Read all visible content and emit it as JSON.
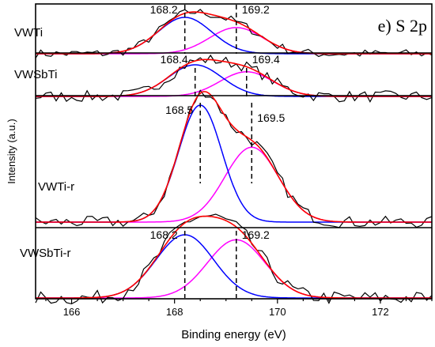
{
  "chart_data": {
    "type": "line",
    "panel_label": "e) S 2p",
    "xlabel": "Binding energy (eV)",
    "ylabel": "Intensity (a.u.)",
    "xlim": [
      165.3,
      173.0
    ],
    "xticks": [
      166,
      168,
      170,
      172
    ],
    "xtick_labels": [
      "166",
      "168",
      "170",
      "172"
    ],
    "grid": false,
    "colors": {
      "experimental": "#000000",
      "fit_envelope": "#ff0000",
      "component_1": "#0000ff",
      "component_2": "#ff00ff",
      "peak_marker": "#000000"
    },
    "spectra": [
      {
        "name": "VWTi",
        "peaks": [
          168.2,
          169.2
        ],
        "peak_labels": [
          "168.2",
          "169.2"
        ],
        "amplitudes": [
          1.0,
          0.72
        ],
        "widths": [
          0.52,
          0.52
        ],
        "noise": 0.12
      },
      {
        "name": "VWSbTi",
        "peaks": [
          168.4,
          169.4
        ],
        "peak_labels": [
          "168.4",
          "169.4"
        ],
        "amplitudes": [
          1.0,
          0.78
        ],
        "widths": [
          0.52,
          0.52
        ],
        "noise": 0.18
      },
      {
        "name": "VWTi-r",
        "peaks": [
          168.5,
          169.5
        ],
        "peak_labels": [
          "168.5",
          "169.5"
        ],
        "amplitudes": [
          1.0,
          0.64
        ],
        "widths": [
          0.42,
          0.52
        ],
        "noise": 0.05
      },
      {
        "name": "VWSbTi-r",
        "peaks": [
          168.2,
          169.2
        ],
        "peak_labels": [
          "168.2",
          "169.2"
        ],
        "amplitudes": [
          1.0,
          0.92
        ],
        "widths": [
          0.56,
          0.56
        ],
        "noise": 0.11
      }
    ]
  }
}
